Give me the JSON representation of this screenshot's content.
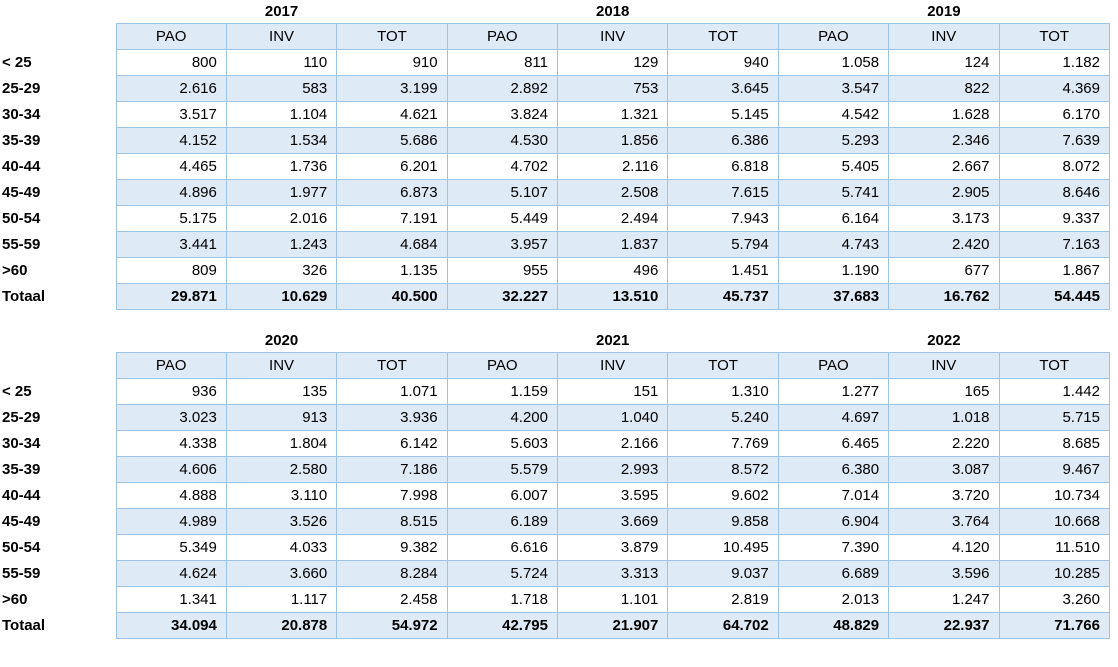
{
  "styles": {
    "band_fill": "#DEEAF6",
    "border_color": "#9DC3E6",
    "text_color": "#000000"
  },
  "chart_data": [
    {
      "type": "table",
      "year_groups": [
        "2017",
        "2018",
        "2019"
      ],
      "sub_columns": [
        "PAO",
        "INV",
        "TOT"
      ],
      "rows": [
        {
          "label": "< 25",
          "is_total": false,
          "values": [
            "800",
            "110",
            "910",
            "811",
            "129",
            "940",
            "1.058",
            "124",
            "1.182"
          ]
        },
        {
          "label": "25-29",
          "is_total": false,
          "values": [
            "2.616",
            "583",
            "3.199",
            "2.892",
            "753",
            "3.645",
            "3.547",
            "822",
            "4.369"
          ]
        },
        {
          "label": "30-34",
          "is_total": false,
          "values": [
            "3.517",
            "1.104",
            "4.621",
            "3.824",
            "1.321",
            "5.145",
            "4.542",
            "1.628",
            "6.170"
          ]
        },
        {
          "label": "35-39",
          "is_total": false,
          "values": [
            "4.152",
            "1.534",
            "5.686",
            "4.530",
            "1.856",
            "6.386",
            "5.293",
            "2.346",
            "7.639"
          ]
        },
        {
          "label": "40-44",
          "is_total": false,
          "values": [
            "4.465",
            "1.736",
            "6.201",
            "4.702",
            "2.116",
            "6.818",
            "5.405",
            "2.667",
            "8.072"
          ]
        },
        {
          "label": "45-49",
          "is_total": false,
          "values": [
            "4.896",
            "1.977",
            "6.873",
            "5.107",
            "2.508",
            "7.615",
            "5.741",
            "2.905",
            "8.646"
          ]
        },
        {
          "label": "50-54",
          "is_total": false,
          "values": [
            "5.175",
            "2.016",
            "7.191",
            "5.449",
            "2.494",
            "7.943",
            "6.164",
            "3.173",
            "9.337"
          ]
        },
        {
          "label": "55-59",
          "is_total": false,
          "values": [
            "3.441",
            "1.243",
            "4.684",
            "3.957",
            "1.837",
            "5.794",
            "4.743",
            "2.420",
            "7.163"
          ]
        },
        {
          "label": ">60",
          "is_total": false,
          "values": [
            "809",
            "326",
            "1.135",
            "955",
            "496",
            "1.451",
            "1.190",
            "677",
            "1.867"
          ]
        },
        {
          "label": "Totaal",
          "is_total": true,
          "values": [
            "29.871",
            "10.629",
            "40.500",
            "32.227",
            "13.510",
            "45.737",
            "37.683",
            "16.762",
            "54.445"
          ]
        }
      ]
    },
    {
      "type": "table",
      "year_groups": [
        "2020",
        "2021",
        "2022"
      ],
      "sub_columns": [
        "PAO",
        "INV",
        "TOT"
      ],
      "rows": [
        {
          "label": "< 25",
          "is_total": false,
          "values": [
            "936",
            "135",
            "1.071",
            "1.159",
            "151",
            "1.310",
            "1.277",
            "165",
            "1.442"
          ]
        },
        {
          "label": "25-29",
          "is_total": false,
          "values": [
            "3.023",
            "913",
            "3.936",
            "4.200",
            "1.040",
            "5.240",
            "4.697",
            "1.018",
            "5.715"
          ]
        },
        {
          "label": "30-34",
          "is_total": false,
          "values": [
            "4.338",
            "1.804",
            "6.142",
            "5.603",
            "2.166",
            "7.769",
            "6.465",
            "2.220",
            "8.685"
          ]
        },
        {
          "label": "35-39",
          "is_total": false,
          "values": [
            "4.606",
            "2.580",
            "7.186",
            "5.579",
            "2.993",
            "8.572",
            "6.380",
            "3.087",
            "9.467"
          ]
        },
        {
          "label": "40-44",
          "is_total": false,
          "values": [
            "4.888",
            "3.110",
            "7.998",
            "6.007",
            "3.595",
            "9.602",
            "7.014",
            "3.720",
            "10.734"
          ]
        },
        {
          "label": "45-49",
          "is_total": false,
          "values": [
            "4.989",
            "3.526",
            "8.515",
            "6.189",
            "3.669",
            "9.858",
            "6.904",
            "3.764",
            "10.668"
          ]
        },
        {
          "label": "50-54",
          "is_total": false,
          "values": [
            "5.349",
            "4.033",
            "9.382",
            "6.616",
            "3.879",
            "10.495",
            "7.390",
            "4.120",
            "11.510"
          ]
        },
        {
          "label": "55-59",
          "is_total": false,
          "values": [
            "4.624",
            "3.660",
            "8.284",
            "5.724",
            "3.313",
            "9.037",
            "6.689",
            "3.596",
            "10.285"
          ]
        },
        {
          "label": ">60",
          "is_total": false,
          "values": [
            "1.341",
            "1.117",
            "2.458",
            "1.718",
            "1.101",
            "2.819",
            "2.013",
            "1.247",
            "3.260"
          ]
        },
        {
          "label": "Totaal",
          "is_total": true,
          "values": [
            "34.094",
            "20.878",
            "54.972",
            "42.795",
            "21.907",
            "64.702",
            "48.829",
            "22.937",
            "71.766"
          ]
        }
      ]
    }
  ]
}
